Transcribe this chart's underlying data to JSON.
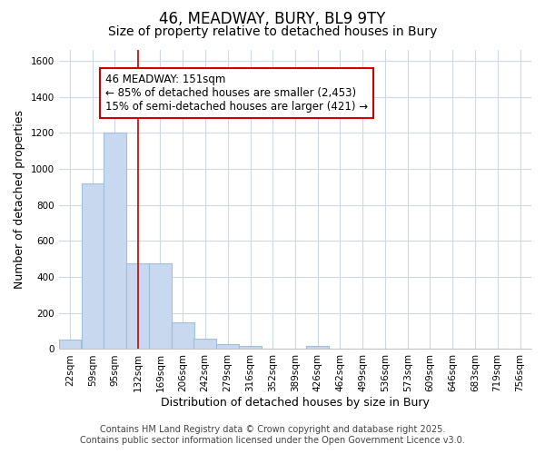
{
  "title_line1": "46, MEADWAY, BURY, BL9 9TY",
  "title_line2": "Size of property relative to detached houses in Bury",
  "xlabel": "Distribution of detached houses by size in Bury",
  "ylabel": "Number of detached properties",
  "bins": [
    22,
    59,
    95,
    132,
    169,
    206,
    242,
    279,
    316,
    352,
    389,
    426,
    462,
    499,
    536,
    573,
    609,
    646,
    683,
    719,
    756
  ],
  "counts": [
    55,
    920,
    1200,
    475,
    475,
    150,
    60,
    30,
    15,
    0,
    0,
    15,
    0,
    0,
    0,
    0,
    0,
    0,
    0,
    0
  ],
  "bar_color": "#c8d8ef",
  "bar_edgecolor": "#a0bedd",
  "bar_linewidth": 0.8,
  "vline_x": 151,
  "vline_color": "#cc0000",
  "vline_linewidth": 1.2,
  "annotation_text": "46 MEADWAY: 151sqm\n← 85% of detached houses are smaller (2,453)\n15% of semi-detached houses are larger (421) →",
  "annotation_boxcolor": "white",
  "annotation_edgecolor": "#cc0000",
  "ylim": [
    0,
    1660
  ],
  "yticks": [
    0,
    200,
    400,
    600,
    800,
    1000,
    1200,
    1400,
    1600
  ],
  "bg_color": "#ffffff",
  "plot_bg_color": "#ffffff",
  "grid_color": "#d0d8e8",
  "footer_line1": "Contains HM Land Registry data © Crown copyright and database right 2025.",
  "footer_line2": "Contains public sector information licensed under the Open Government Licence v3.0.",
  "title_fontsize": 12,
  "subtitle_fontsize": 10,
  "tick_fontsize": 7.5,
  "ylabel_fontsize": 9,
  "xlabel_fontsize": 9,
  "annotation_fontsize": 8.5,
  "footer_fontsize": 7
}
